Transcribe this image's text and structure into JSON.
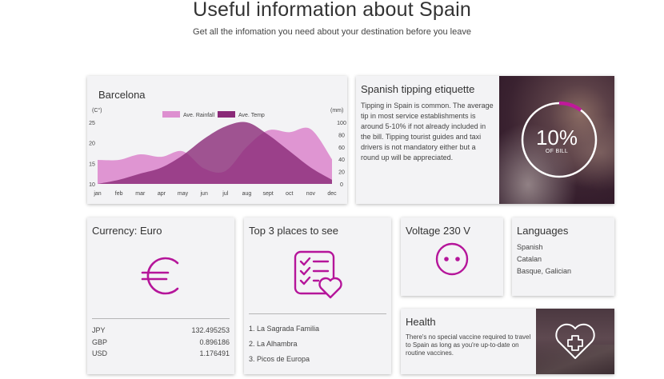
{
  "page": {
    "title": "Useful information about Spain",
    "subtitle": "Get all the infomation you need about your destination before you leave"
  },
  "climate": {
    "title": "Barcelona",
    "colors": {
      "rainfall": "#dd8fd0",
      "temp": "#8a2a78"
    }
  },
  "chart_data": {
    "type": "area",
    "categories": [
      "jan",
      "feb",
      "mar",
      "apr",
      "may",
      "jun",
      "jul",
      "aug",
      "sept",
      "oct",
      "nov",
      "dec"
    ],
    "series": [
      {
        "name": "Ave. Rainfall",
        "axis": "right",
        "values": [
          39,
          39,
          48,
          44,
          53,
          25,
          21,
          60,
          87,
          84,
          89,
          40
        ]
      },
      {
        "name": "Ave. Temp",
        "axis": "left",
        "values": [
          10,
          11,
          12.5,
          14,
          17,
          21,
          24,
          25,
          22,
          18,
          14,
          11
        ]
      }
    ],
    "ylabel_left": "(C°)",
    "ylabel_right": "(mm)",
    "yticks_left": [
      10,
      15,
      20,
      25
    ],
    "ylim_left": [
      10,
      25
    ],
    "yticks_right": [
      0,
      20,
      40,
      60,
      80,
      100
    ],
    "ylim_right": [
      0,
      100
    ],
    "grid": false,
    "legend": "top-center"
  },
  "tipping": {
    "title": "Spanish tipping etiquette",
    "body": "Tipping in Spain is common. The average tip in most service establishments is around 5-10% if not already included in the bill. Tipping tourist guides and taxi drivers is not mandatory either but a round up will be appreciated.",
    "percent": "10%",
    "percent_label": "OF BILL",
    "ring_fraction": 0.1,
    "accent": "#c0199b"
  },
  "currency": {
    "title": "Currency: Euro",
    "icon": "euro-icon",
    "rates": [
      {
        "code": "JPY",
        "value": "132.495253"
      },
      {
        "code": "GBP",
        "value": "0.896186"
      },
      {
        "code": "USD",
        "value": "1.176491"
      }
    ]
  },
  "places": {
    "title": "Top 3 places to see",
    "icon": "checklist-heart-icon",
    "items": [
      "1. La Sagrada Familia",
      "2. La Alhambra",
      "3. Picos de Europa"
    ]
  },
  "voltage": {
    "title": "Voltage 230 V",
    "icon": "power-socket-icon"
  },
  "languages": {
    "title": "Languages",
    "items": [
      "Spanish",
      "Catalan",
      "Basque, Galician"
    ]
  },
  "health": {
    "title": "Health",
    "body": "There's no special vaccine required to travel to Spain as long as you're up-to-date on routine vaccines.",
    "icon": "medical-heart-icon"
  },
  "theme": {
    "accent": "#b5159a"
  }
}
